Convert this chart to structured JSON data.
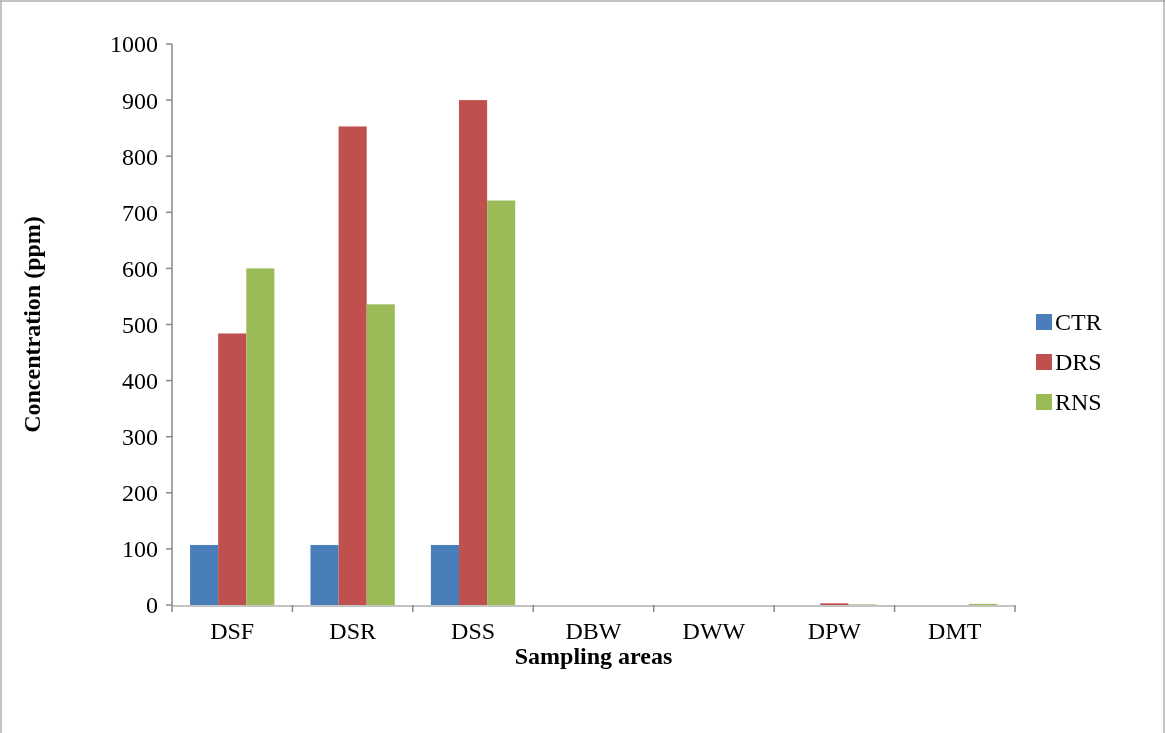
{
  "chart_data": {
    "type": "bar",
    "xlabel": "Sampling areas",
    "ylabel": "Concentration (ppm)",
    "categories": [
      "DSF",
      "DSR",
      "DSS",
      "DBW",
      "DWW",
      "DPW",
      "DMT"
    ],
    "series": [
      {
        "name": "CTR",
        "color": "#4a7ebb",
        "values": [
          107,
          107,
          107,
          0,
          0,
          0,
          0
        ]
      },
      {
        "name": "DRS",
        "color": "#c0504d",
        "values": [
          484,
          853,
          900,
          0,
          0,
          3,
          0
        ]
      },
      {
        "name": "RNS",
        "color": "#9bbb59",
        "values": [
          600,
          536,
          721,
          0,
          0,
          1,
          2
        ]
      }
    ],
    "ylim": [
      0,
      1000
    ],
    "yticks": [
      0,
      100,
      200,
      300,
      400,
      500,
      600,
      700,
      800,
      900,
      1000
    ],
    "grid": false,
    "legend": "right"
  }
}
